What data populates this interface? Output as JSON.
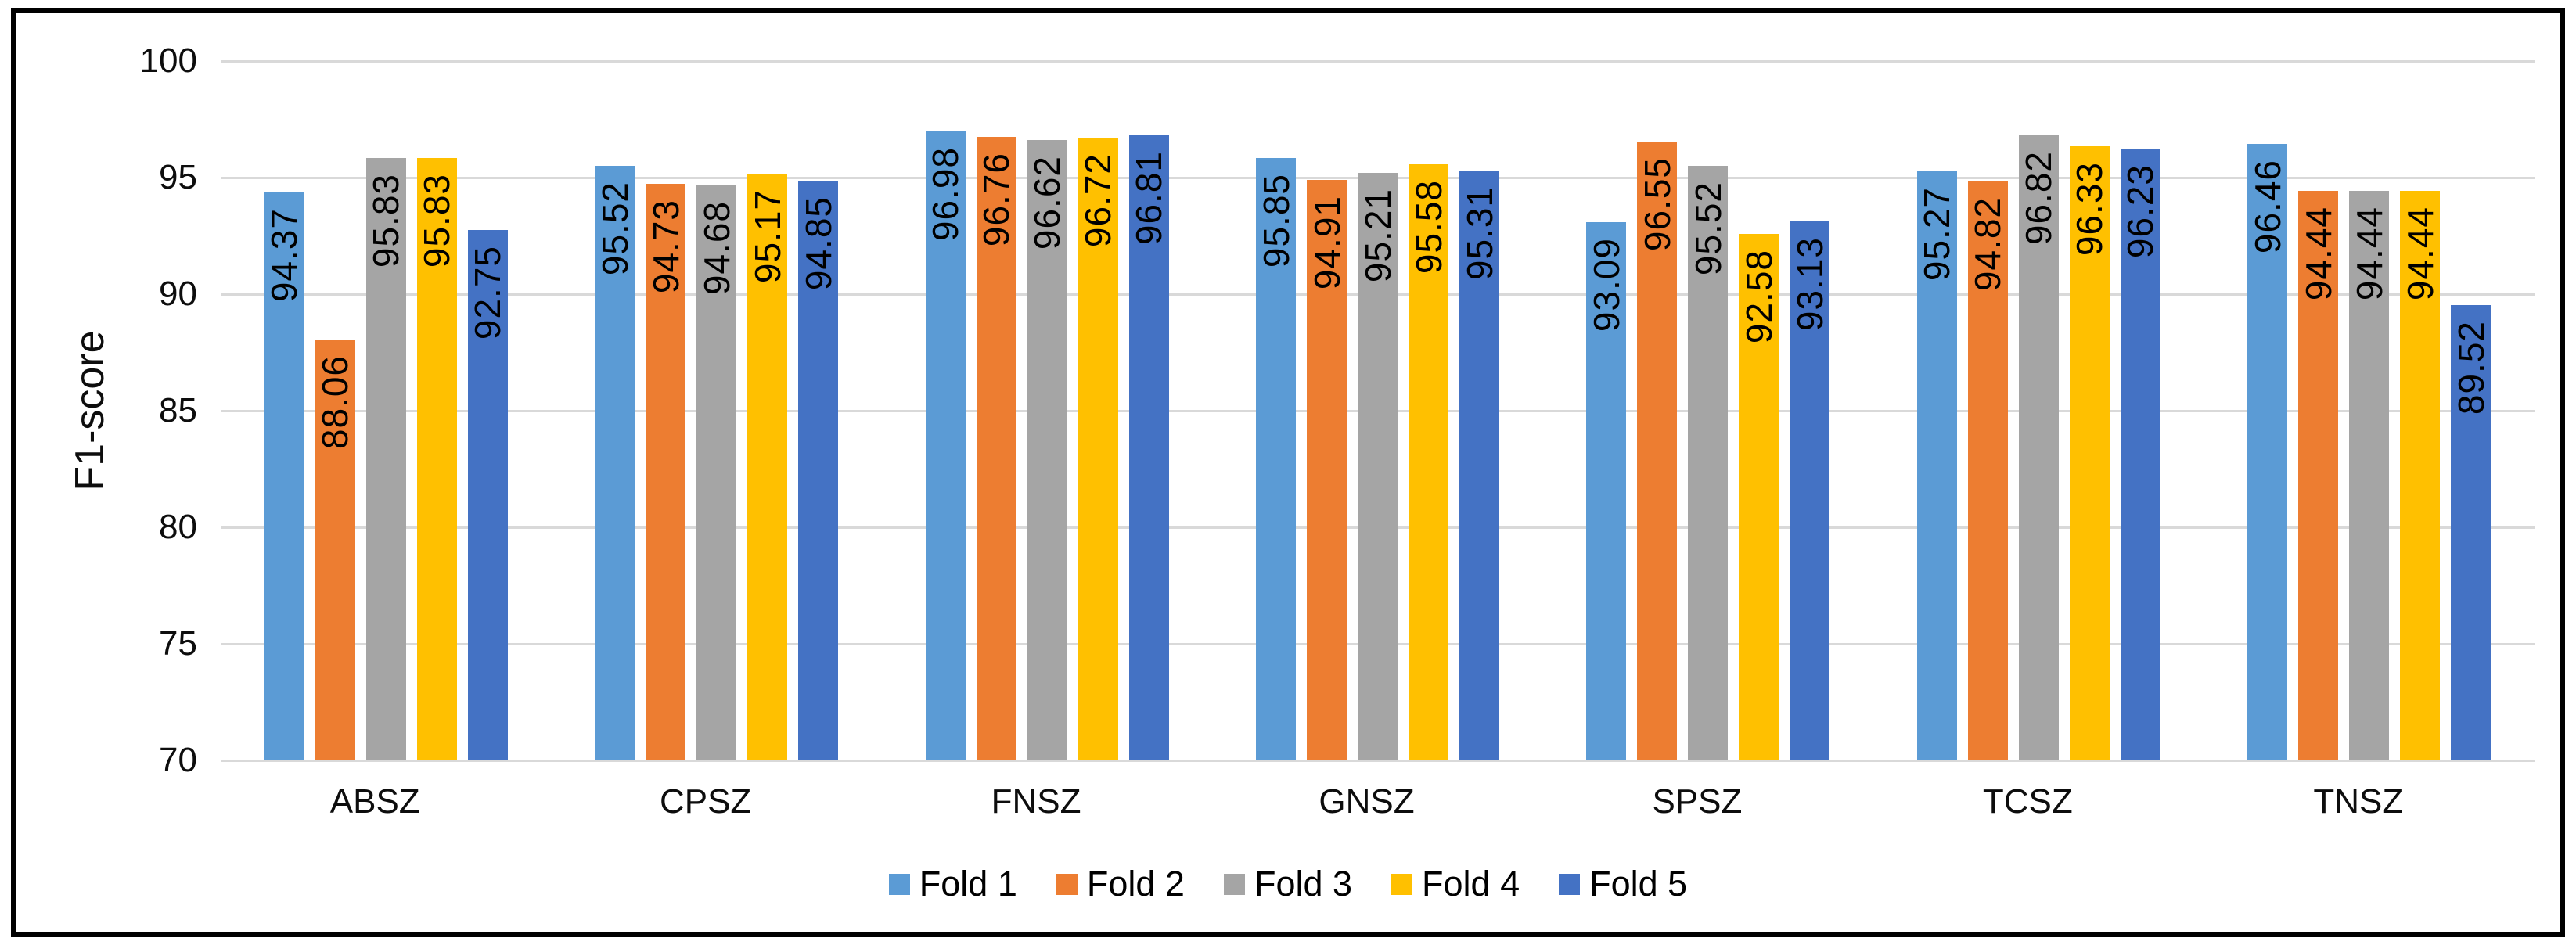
{
  "chart_data": {
    "type": "bar",
    "title": "",
    "categories": [
      "ABSZ",
      "CPSZ",
      "FNSZ",
      "GNSZ",
      "SPSZ",
      "TCSZ",
      "TNSZ"
    ],
    "series": [
      {
        "name": "Fold 1",
        "color": "#5B9BD5",
        "values": [
          94.37,
          95.52,
          96.98,
          95.85,
          93.09,
          95.27,
          96.46
        ]
      },
      {
        "name": "Fold 2",
        "color": "#ED7D31",
        "values": [
          88.06,
          94.73,
          96.76,
          94.91,
          96.55,
          94.82,
          94.44
        ]
      },
      {
        "name": "Fold 3",
        "color": "#A5A5A5",
        "values": [
          95.83,
          94.68,
          96.62,
          95.21,
          95.52,
          96.82,
          94.44
        ]
      },
      {
        "name": "Fold 4",
        "color": "#FFC000",
        "values": [
          95.83,
          95.17,
          96.72,
          95.58,
          92.58,
          96.33,
          94.44
        ]
      },
      {
        "name": "Fold 5",
        "color": "#4472C4",
        "values": [
          92.75,
          94.85,
          96.81,
          95.31,
          93.13,
          96.23,
          89.52
        ]
      }
    ],
    "xlabel": "",
    "ylabel": "F1-score",
    "ylim": [
      70,
      100
    ],
    "yticks": [
      70,
      75,
      80,
      85,
      90,
      95,
      100
    ],
    "grid": true,
    "legend_position": "bottom",
    "data_labels": "value, two decimals, rotated vertical, inside end of bar"
  },
  "style": {
    "gridline_color": "#D9D9D9",
    "axis_text_color": "#0d0d0d",
    "data_label_color": "#000000",
    "frame_border_color": "#000000",
    "background_color": "#FFFFFF"
  }
}
